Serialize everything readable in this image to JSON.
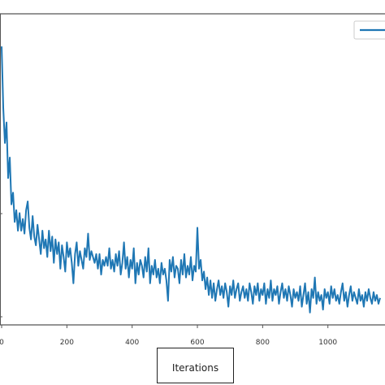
{
  "chart_data": {
    "type": "line",
    "xlabel": "Iterations",
    "ylabel": "",
    "title": "",
    "xlim": [
      -5,
      1175
    ],
    "ylim": [
      0,
      1
    ],
    "xticks": [
      0,
      200,
      400,
      600,
      800,
      1000
    ],
    "xtick_labels": [
      "0",
      "200",
      "400",
      "600",
      "800",
      "1000"
    ],
    "grid": false,
    "legend": {
      "placement": "top-right",
      "entries": [
        ""
      ]
    },
    "series": [
      {
        "color": "#1f77b4",
        "points": [
          [
            0,
            0.93
          ],
          [
            5,
            0.72
          ],
          [
            10,
            0.6
          ],
          [
            15,
            0.67
          ],
          [
            20,
            0.48
          ],
          [
            25,
            0.55
          ],
          [
            30,
            0.39
          ],
          [
            35,
            0.43
          ],
          [
            40,
            0.33
          ],
          [
            45,
            0.37
          ],
          [
            50,
            0.3
          ],
          [
            55,
            0.36
          ],
          [
            60,
            0.3
          ],
          [
            65,
            0.34
          ],
          [
            70,
            0.29
          ],
          [
            75,
            0.37
          ],
          [
            80,
            0.4
          ],
          [
            85,
            0.31
          ],
          [
            90,
            0.27
          ],
          [
            95,
            0.35
          ],
          [
            100,
            0.28
          ],
          [
            105,
            0.25
          ],
          [
            110,
            0.32
          ],
          [
            115,
            0.27
          ],
          [
            120,
            0.22
          ],
          [
            125,
            0.3
          ],
          [
            130,
            0.24
          ],
          [
            135,
            0.27
          ],
          [
            140,
            0.21
          ],
          [
            145,
            0.3
          ],
          [
            150,
            0.23
          ],
          [
            155,
            0.28
          ],
          [
            160,
            0.19
          ],
          [
            165,
            0.27
          ],
          [
            170,
            0.22
          ],
          [
            175,
            0.26
          ],
          [
            180,
            0.17
          ],
          [
            185,
            0.25
          ],
          [
            190,
            0.21
          ],
          [
            195,
            0.16
          ],
          [
            200,
            0.26
          ],
          [
            205,
            0.21
          ],
          [
            210,
            0.24
          ],
          [
            215,
            0.19
          ],
          [
            220,
            0.12
          ],
          [
            225,
            0.22
          ],
          [
            230,
            0.26
          ],
          [
            235,
            0.18
          ],
          [
            240,
            0.23
          ],
          [
            245,
            0.2
          ],
          [
            250,
            0.17
          ],
          [
            255,
            0.24
          ],
          [
            260,
            0.21
          ],
          [
            265,
            0.29
          ],
          [
            270,
            0.2
          ],
          [
            275,
            0.23
          ],
          [
            280,
            0.21
          ],
          [
            285,
            0.19
          ],
          [
            290,
            0.22
          ],
          [
            295,
            0.17
          ],
          [
            300,
            0.22
          ],
          [
            305,
            0.15
          ],
          [
            310,
            0.2
          ],
          [
            315,
            0.18
          ],
          [
            320,
            0.21
          ],
          [
            325,
            0.18
          ],
          [
            330,
            0.24
          ],
          [
            335,
            0.17
          ],
          [
            340,
            0.2
          ],
          [
            345,
            0.16
          ],
          [
            350,
            0.22
          ],
          [
            355,
            0.18
          ],
          [
            360,
            0.23
          ],
          [
            365,
            0.15
          ],
          [
            370,
            0.19
          ],
          [
            375,
            0.26
          ],
          [
            380,
            0.17
          ],
          [
            385,
            0.21
          ],
          [
            390,
            0.14
          ],
          [
            395,
            0.2
          ],
          [
            400,
            0.17
          ],
          [
            405,
            0.24
          ],
          [
            410,
            0.12
          ],
          [
            415,
            0.19
          ],
          [
            420,
            0.15
          ],
          [
            425,
            0.2
          ],
          [
            430,
            0.18
          ],
          [
            435,
            0.14
          ],
          [
            440,
            0.21
          ],
          [
            445,
            0.16
          ],
          [
            450,
            0.24
          ],
          [
            455,
            0.12
          ],
          [
            460,
            0.18
          ],
          [
            465,
            0.15
          ],
          [
            470,
            0.2
          ],
          [
            475,
            0.14
          ],
          [
            480,
            0.17
          ],
          [
            485,
            0.12
          ],
          [
            490,
            0.19
          ],
          [
            495,
            0.15
          ],
          [
            500,
            0.17
          ],
          [
            505,
            0.13
          ],
          [
            510,
            0.06
          ],
          [
            515,
            0.2
          ],
          [
            520,
            0.16
          ],
          [
            525,
            0.21
          ],
          [
            530,
            0.14
          ],
          [
            535,
            0.18
          ],
          [
            540,
            0.17
          ],
          [
            545,
            0.12
          ],
          [
            550,
            0.2
          ],
          [
            555,
            0.15
          ],
          [
            560,
            0.22
          ],
          [
            565,
            0.14
          ],
          [
            570,
            0.18
          ],
          [
            575,
            0.15
          ],
          [
            580,
            0.21
          ],
          [
            585,
            0.13
          ],
          [
            590,
            0.18
          ],
          [
            595,
            0.16
          ],
          [
            600,
            0.31
          ],
          [
            605,
            0.17
          ],
          [
            610,
            0.2
          ],
          [
            615,
            0.13
          ],
          [
            620,
            0.16
          ],
          [
            625,
            0.1
          ],
          [
            630,
            0.14
          ],
          [
            635,
            0.08
          ],
          [
            640,
            0.13
          ],
          [
            645,
            0.07
          ],
          [
            650,
            0.12
          ],
          [
            655,
            0.06
          ],
          [
            660,
            0.1
          ],
          [
            665,
            0.13
          ],
          [
            670,
            0.08
          ],
          [
            675,
            0.11
          ],
          [
            680,
            0.07
          ],
          [
            685,
            0.12
          ],
          [
            690,
            0.09
          ],
          [
            695,
            0.04
          ],
          [
            700,
            0.11
          ],
          [
            705,
            0.08
          ],
          [
            710,
            0.13
          ],
          [
            715,
            0.07
          ],
          [
            720,
            0.1
          ],
          [
            725,
            0.12
          ],
          [
            730,
            0.06
          ],
          [
            735,
            0.09
          ],
          [
            740,
            0.11
          ],
          [
            745,
            0.07
          ],
          [
            750,
            0.1
          ],
          [
            755,
            0.06
          ],
          [
            760,
            0.12
          ],
          [
            765,
            0.09
          ],
          [
            770,
            0.05
          ],
          [
            775,
            0.11
          ],
          [
            780,
            0.08
          ],
          [
            785,
            0.12
          ],
          [
            790,
            0.06
          ],
          [
            795,
            0.1
          ],
          [
            800,
            0.08
          ],
          [
            805,
            0.12
          ],
          [
            810,
            0.05
          ],
          [
            815,
            0.1
          ],
          [
            820,
            0.07
          ],
          [
            825,
            0.13
          ],
          [
            830,
            0.06
          ],
          [
            835,
            0.1
          ],
          [
            840,
            0.08
          ],
          [
            845,
            0.11
          ],
          [
            850,
            0.05
          ],
          [
            855,
            0.09
          ],
          [
            860,
            0.12
          ],
          [
            865,
            0.07
          ],
          [
            870,
            0.1
          ],
          [
            875,
            0.06
          ],
          [
            880,
            0.11
          ],
          [
            885,
            0.08
          ],
          [
            890,
            0.04
          ],
          [
            895,
            0.1
          ],
          [
            900,
            0.07
          ],
          [
            905,
            0.09
          ],
          [
            910,
            0.06
          ],
          [
            915,
            0.11
          ],
          [
            920,
            0.04
          ],
          [
            925,
            0.08
          ],
          [
            930,
            0.12
          ],
          [
            935,
            0.05
          ],
          [
            940,
            0.09
          ],
          [
            945,
            0.02
          ],
          [
            950,
            0.1
          ],
          [
            955,
            0.07
          ],
          [
            960,
            0.14
          ],
          [
            965,
            0.05
          ],
          [
            970,
            0.09
          ],
          [
            975,
            0.06
          ],
          [
            980,
            0.08
          ],
          [
            985,
            0.03
          ],
          [
            990,
            0.1
          ],
          [
            995,
            0.07
          ],
          [
            1000,
            0.09
          ],
          [
            1005,
            0.05
          ],
          [
            1010,
            0.11
          ],
          [
            1015,
            0.07
          ],
          [
            1020,
            0.1
          ],
          [
            1025,
            0.06
          ],
          [
            1030,
            0.08
          ],
          [
            1035,
            0.05
          ],
          [
            1040,
            0.09
          ],
          [
            1045,
            0.12
          ],
          [
            1050,
            0.06
          ],
          [
            1055,
            0.09
          ],
          [
            1060,
            0.04
          ],
          [
            1065,
            0.08
          ],
          [
            1070,
            0.11
          ],
          [
            1075,
            0.06
          ],
          [
            1080,
            0.09
          ],
          [
            1085,
            0.07
          ],
          [
            1090,
            0.05
          ],
          [
            1095,
            0.1
          ],
          [
            1100,
            0.06
          ],
          [
            1105,
            0.08
          ],
          [
            1110,
            0.04
          ],
          [
            1115,
            0.09
          ],
          [
            1120,
            0.06
          ],
          [
            1125,
            0.1
          ],
          [
            1130,
            0.07
          ],
          [
            1135,
            0.05
          ],
          [
            1140,
            0.09
          ],
          [
            1145,
            0.06
          ],
          [
            1150,
            0.08
          ],
          [
            1155,
            0.05
          ],
          [
            1160,
            0.07
          ]
        ]
      }
    ]
  }
}
